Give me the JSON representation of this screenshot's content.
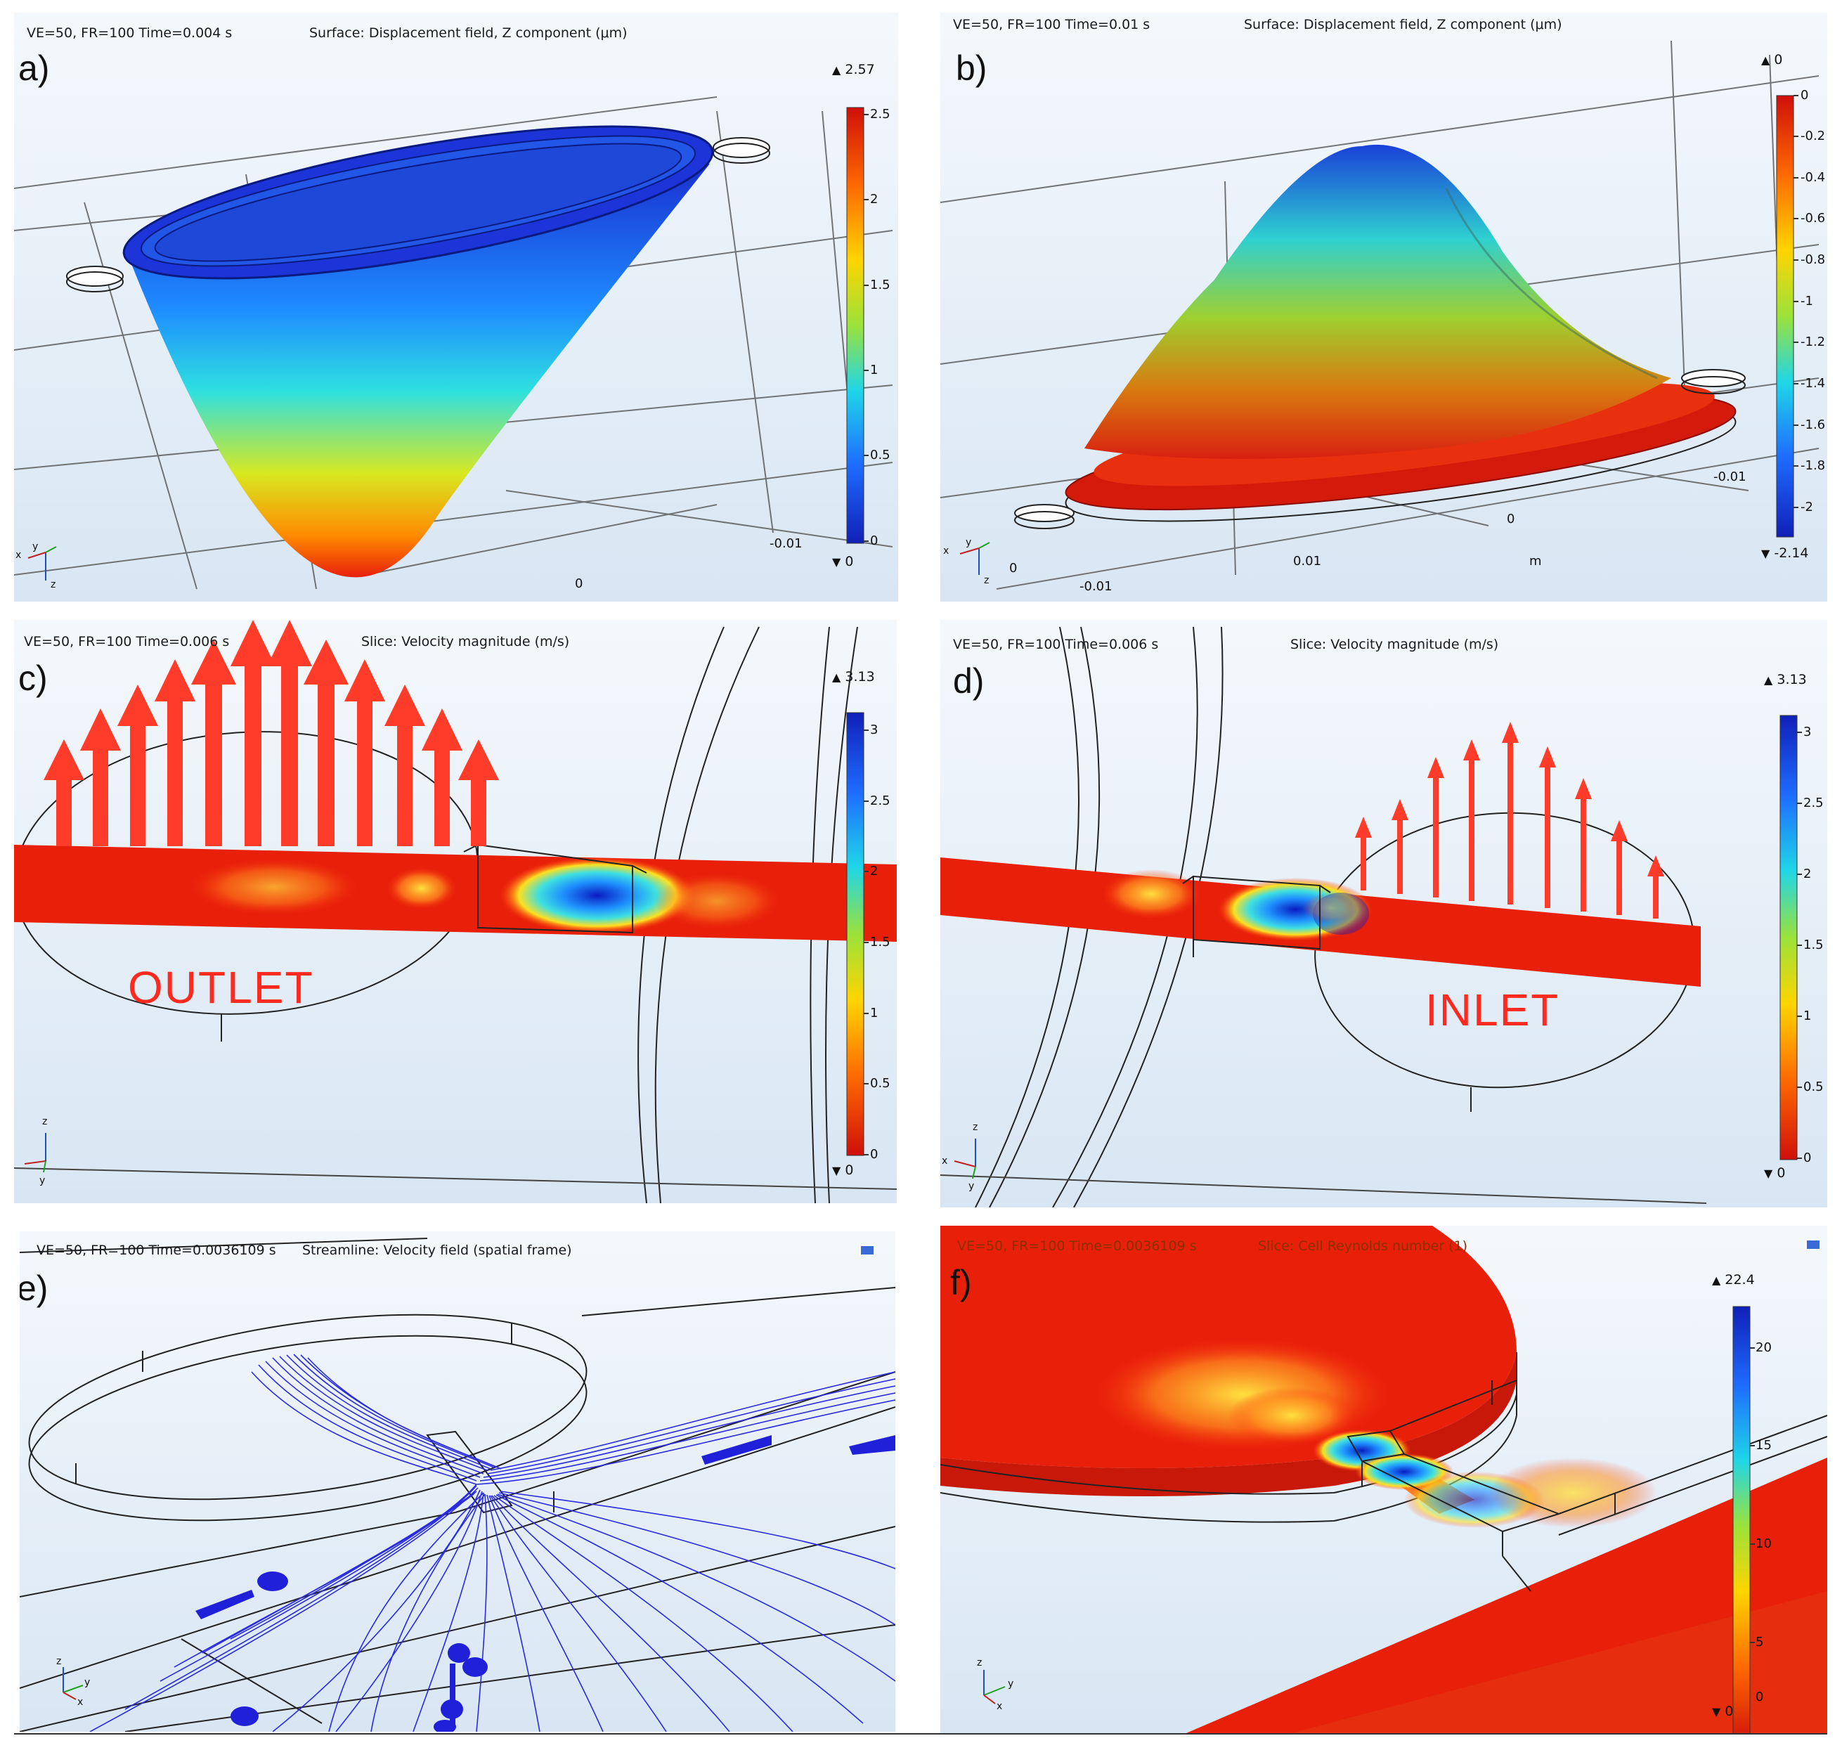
{
  "panels": {
    "a": {
      "label": "a)",
      "header_left": "VE=50, FR=100 Time=0.004 s",
      "header_title": "Surface: Displacement field, Z component (μm)",
      "colorbar": {
        "max": "2.57",
        "min": "0",
        "ticks": [
          "2.5",
          "2",
          "1.5",
          "1",
          "0.5",
          "0"
        ]
      },
      "axis_ticks": [
        "-0.01",
        "0"
      ],
      "triad": [
        "x",
        "y",
        "z"
      ]
    },
    "b": {
      "label": "b)",
      "header_left": "VE=50, FR=100 Time=0.01 s",
      "header_title": "Surface: Displacement field, Z component (μm)",
      "colorbar": {
        "max": "0",
        "min": "-2.14",
        "ticks": [
          "0",
          "-0.2",
          "-0.4",
          "-0.6",
          "-0.8",
          "-1",
          "-1.2",
          "-1.4",
          "-1.6",
          "-1.8",
          "-2"
        ]
      },
      "axis_ticks": [
        "-0.01",
        "0",
        "0.01",
        "m",
        "0",
        "-0.01"
      ],
      "triad": [
        "x",
        "y",
        "z"
      ]
    },
    "c": {
      "label": "c)",
      "header_left": "VE=50, FR=100 Time=0.006 s",
      "header_title": "Slice: Velocity magnitude (m/s)",
      "colorbar": {
        "max": "3.13",
        "min": "0",
        "ticks": [
          "3",
          "2.5",
          "2",
          "1.5",
          "1",
          "0.5",
          "0"
        ]
      },
      "annotation": "OUTLET",
      "triad": [
        "z",
        "y"
      ]
    },
    "d": {
      "label": "d)",
      "header_left": "VE=50, FR=100 Time=0.006 s",
      "header_title": "Slice: Velocity magnitude (m/s)",
      "colorbar": {
        "max": "3.13",
        "min": "0",
        "ticks": [
          "3",
          "2.5",
          "2",
          "1.5",
          "1",
          "0.5",
          "0"
        ]
      },
      "annotation": "INLET",
      "triad": [
        "z",
        "x",
        "y"
      ]
    },
    "e": {
      "label": "e)",
      "header_left": "VE=50, FR=100 Time=0.0036109 s",
      "header_title": "Streamline: Velocity field (spatial frame)",
      "triad": [
        "z",
        "y",
        "x"
      ]
    },
    "f": {
      "label": "f)",
      "header_left": "VE=50, FR=100 Time=0.0036109 s",
      "header_title": "Slice: Cell Reynolds number (1)",
      "colorbar": {
        "max": "22.4",
        "min": "0",
        "ticks": [
          "20",
          "15",
          "10",
          "5",
          "0"
        ]
      },
      "triad": [
        "z",
        "y",
        "x"
      ]
    }
  },
  "colors": {
    "background": "#e4eef8",
    "arrow_red": "#ff2a1f",
    "jet_red": "#e0140a",
    "jet_blue": "#1a2fd0",
    "stream_blue": "#2a2ae0"
  }
}
